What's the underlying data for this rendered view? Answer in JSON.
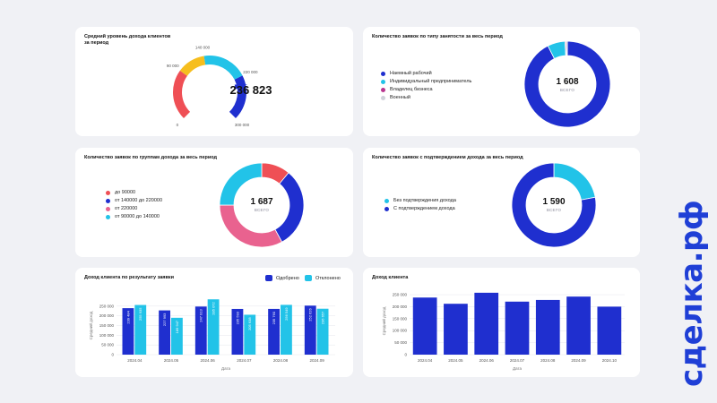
{
  "colors": {
    "blue": "#1f2fcf",
    "cyan": "#22c3e8",
    "yellow": "#f6be1e",
    "red": "#ef4f55",
    "pink": "#e9628f",
    "magenta": "#b8368f",
    "gray": "#cfd2da",
    "brand": "#1f3fd6"
  },
  "brand": "сделка.рф",
  "cards": {
    "gauge": {
      "title_line1": "Средний уровень дохода клиентов",
      "title_line2": "за период",
      "value": "236 823"
    },
    "employment": {
      "title": "Количество заявок по типу занятости за весь период",
      "total": "1 608",
      "total_label": "ВСЕГО",
      "legend": [
        "Наемный рабочий",
        "Индивидуальный предприниматель",
        "Владелец бизнеса",
        "Военный"
      ]
    },
    "income_groups": {
      "title": "Количество заявок по группам дохода за весь период",
      "total": "1 687",
      "total_label": "ВСЕГО",
      "legend": [
        "до 90000",
        "от 140000 до 220000",
        "от 220000",
        "от 90000 до 140000"
      ]
    },
    "confirmed": {
      "title": "Количество заявок с подтверждением дохода за весь период",
      "total": "1 590",
      "total_label": "ВСЕГО",
      "legend": [
        "Без подтверждения дохода",
        "С подтверждением дохода"
      ]
    },
    "income_by_result": {
      "title": "Доход клиента по результату заявки",
      "legend": [
        "Одобрено",
        "Отклонено"
      ]
    },
    "income": {
      "title": "Доход клиента"
    }
  },
  "chart_data": [
    {
      "type": "gauge",
      "value": 236823,
      "min": 0,
      "max": 300000,
      "tick_labels": [
        "0",
        "90 000",
        "140 000",
        "220 000",
        "300 000"
      ],
      "tick_values": [
        0,
        90000,
        140000,
        220000,
        300000
      ],
      "band_colors": [
        "red",
        "yellow",
        "cyan",
        "blue"
      ]
    },
    {
      "type": "pie",
      "labels": [
        "Наемный рабочий",
        "Индивидуальный предприниматель",
        "Владелец бизнеса",
        "Военный"
      ],
      "values": [
        1488,
        106,
        7,
        7
      ],
      "colors": [
        "blue",
        "cyan",
        "magenta",
        "gray"
      ],
      "total": 1608
    },
    {
      "type": "pie",
      "labels": [
        "до 90000",
        "от 140000 до 220000",
        "от 220000",
        "от 90000 до 140000"
      ],
      "values": [
        186,
        523,
        556,
        422
      ],
      "colors": [
        "red",
        "blue",
        "pink",
        "cyan"
      ],
      "total": 1687
    },
    {
      "type": "pie",
      "labels": [
        "Без подтверждения дохода",
        "С подтверждением дохода"
      ],
      "values": [
        350,
        1240
      ],
      "colors": [
        "cyan",
        "blue"
      ],
      "total": 1590
    },
    {
      "type": "bar",
      "categories": [
        "2024.04",
        "2024.05",
        "2024.06",
        "2024.07",
        "2024.08",
        "2024.09"
      ],
      "series": [
        {
          "name": "Одобрено",
          "values": [
            239484,
            227993,
            247913,
            235593,
            235760,
            252626
          ],
          "labels": [
            "239 484",
            "227 993",
            "247 913",
            "235 593",
            "235 760",
            "252 626"
          ],
          "color": "blue"
        },
        {
          "name": "Отклонено",
          "values": [
            255935,
            189947,
            285072,
            205638,
            256549,
            236657
          ],
          "labels": [
            "255 935",
            "189 947",
            "285 072",
            "205 638",
            "256 549",
            "236 657"
          ],
          "color": "cyan"
        }
      ],
      "xlabel": "Дата",
      "ylabel": "Средний доход",
      "ylim": [
        0,
        300000
      ],
      "y_ticks": [
        0,
        50000,
        100000,
        150000,
        200000,
        250000
      ],
      "y_tick_labels": [
        "0",
        "50 000",
        "100 000",
        "150 000",
        "200 000",
        "250 000"
      ]
    },
    {
      "type": "bar",
      "categories": [
        "2024.04",
        "2024.05",
        "2024.06",
        "2024.07",
        "2024.08",
        "2024.09",
        "2024.10"
      ],
      "series": [
        {
          "name": "",
          "values": [
            238000,
            212000,
            258000,
            221000,
            228000,
            242000,
            200000
          ],
          "color": "blue"
        }
      ],
      "xlabel": "Дата",
      "ylabel": "Средний доход",
      "ylim": [
        0,
        280000
      ],
      "y_ticks": [
        0,
        50000,
        100000,
        150000,
        200000,
        250000
      ],
      "y_tick_labels": [
        "0",
        "50 000",
        "100 000",
        "150 000",
        "200 000",
        "250 000"
      ]
    }
  ]
}
